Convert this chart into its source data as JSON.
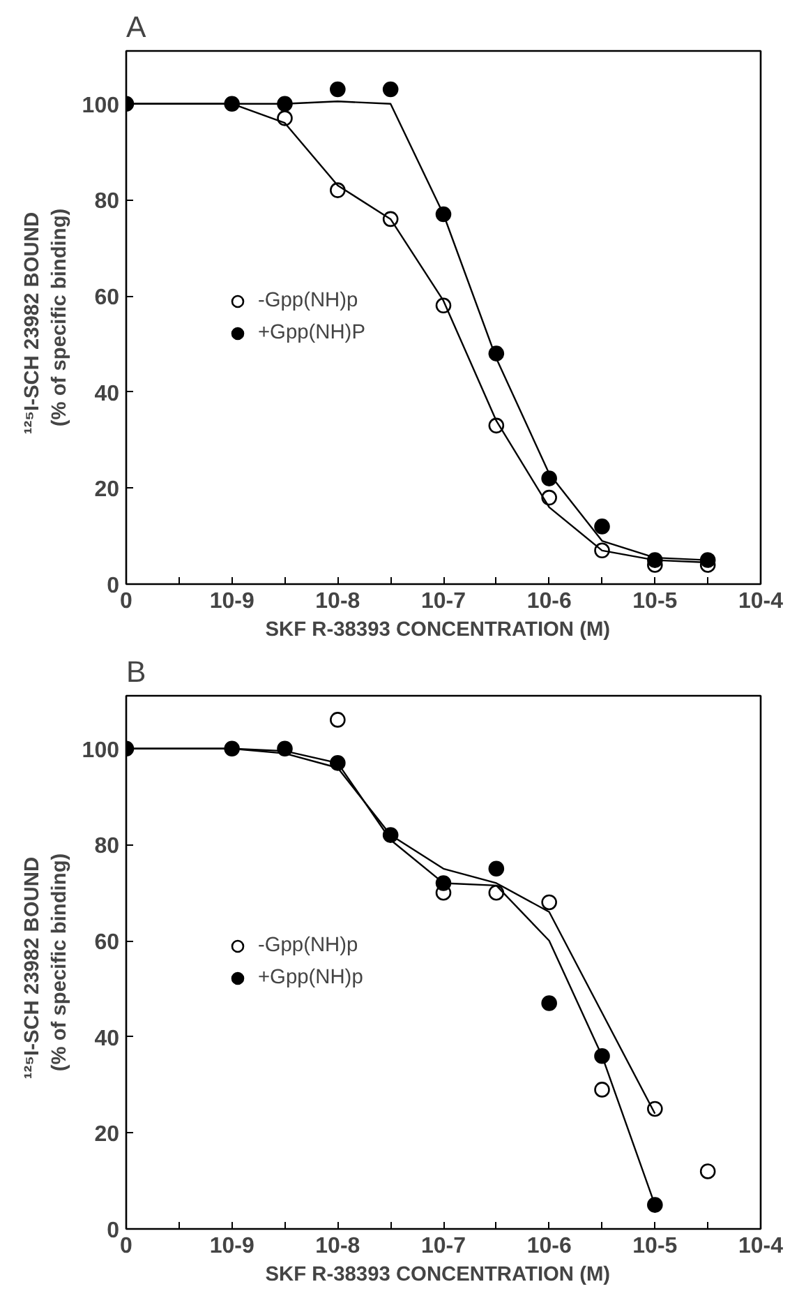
{
  "chart_data": [
    {
      "type": "scatter",
      "title": "A",
      "xlabel": "SKF R-38393  CONCENTRATION  (M)",
      "ylabel": "¹²⁵I-SCH  23982  BOUND\n(% of specific binding)",
      "categories": [
        "0",
        null,
        "10-9",
        null,
        "10-8",
        null,
        "10-7",
        null,
        "10-6",
        null,
        "10-5",
        null,
        "10-4"
      ],
      "ylim": [
        0,
        111
      ],
      "yticks": [
        0,
        20,
        40,
        60,
        80,
        100
      ],
      "grid": false,
      "legend": "left",
      "series": [
        {
          "name": "-Gpp(NH)p",
          "marker": "circle_open",
          "color": "#000000",
          "values": [
            null,
            null,
            null,
            97,
            82,
            76,
            58,
            33,
            18,
            7,
            4,
            4,
            null
          ]
        },
        {
          "name": "+Gpp(NH)P",
          "marker": "circle",
          "color": "#000000",
          "values": [
            100,
            null,
            100,
            100,
            103,
            103,
            77,
            48,
            22,
            12,
            5,
            5,
            null
          ]
        },
        {
          "type": "line",
          "color": "#000000",
          "values": [
            100,
            100,
            100,
            96,
            83,
            76,
            59,
            34,
            16,
            7,
            5,
            4.5,
            null
          ]
        },
        {
          "type": "line",
          "color": "#000000",
          "values": [
            100,
            100,
            100,
            100,
            100.5,
            100,
            77,
            47,
            23,
            9,
            5.5,
            5,
            null
          ]
        }
      ]
    },
    {
      "type": "scatter",
      "title": "B",
      "xlabel": "SKF R-38393  CONCENTRATION  (M)",
      "ylabel": "¹²⁵I-SCH  23982  BOUND\n(% of specific binding)",
      "categories": [
        "0",
        null,
        "10-9",
        null,
        "10-8",
        null,
        "10-7",
        null,
        "10-6",
        null,
        "10-5",
        null,
        "10-4"
      ],
      "ylim": [
        0,
        111
      ],
      "yticks": [
        0,
        20,
        40,
        60,
        80,
        100
      ],
      "grid": false,
      "legend": "left",
      "series": [
        {
          "name": "-Gpp(NH)p",
          "marker": "circle_open",
          "color": "#000000",
          "values": [
            null,
            null,
            null,
            null,
            106,
            null,
            70,
            70,
            68,
            29,
            25,
            12,
            null
          ]
        },
        {
          "name": "+Gpp(NH)p",
          "marker": "circle",
          "color": "#000000",
          "values": [
            100,
            null,
            100,
            100,
            97,
            82,
            72,
            75,
            47,
            36,
            5,
            null,
            null
          ]
        },
        {
          "type": "line",
          "color": "#000000",
          "values": [
            100,
            100,
            100,
            99,
            96,
            82,
            75,
            72,
            66,
            45,
            24,
            null,
            null
          ]
        },
        {
          "type": "line",
          "color": "#000000",
          "values": [
            100,
            100,
            100,
            99.5,
            97,
            81,
            72,
            71.5,
            60,
            36,
            5,
            null,
            null
          ]
        }
      ]
    }
  ]
}
